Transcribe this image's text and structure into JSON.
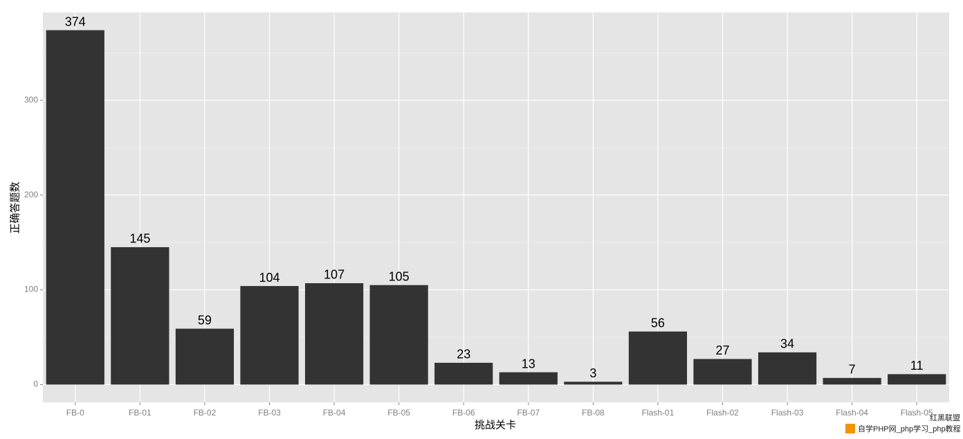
{
  "chart_data": {
    "type": "bar",
    "x_label": "挑战关卡",
    "y_label": "正确答题数",
    "categories": [
      "FB-0",
      "FB-01",
      "FB-02",
      "FB-03",
      "FB-04",
      "FB-05",
      "FB-06",
      "FB-07",
      "FB-08",
      "Flash-01",
      "Flash-02",
      "Flash-03",
      "Flash-04",
      "Flash-05"
    ],
    "values": [
      374,
      145,
      59,
      104,
      107,
      105,
      23,
      13,
      3,
      56,
      27,
      34,
      7,
      11
    ],
    "color": "#333333",
    "panel_color": "#e5e5e5",
    "ylim": [
      -18.7,
      392.7
    ],
    "yticks": [
      0,
      100,
      200,
      300
    ],
    "minor_yticks": [
      50,
      150,
      250,
      350
    ],
    "grid": true,
    "watermark": {
      "brand": "红黑联盟",
      "caption": "自学PHP网_php学习_php教程"
    }
  }
}
